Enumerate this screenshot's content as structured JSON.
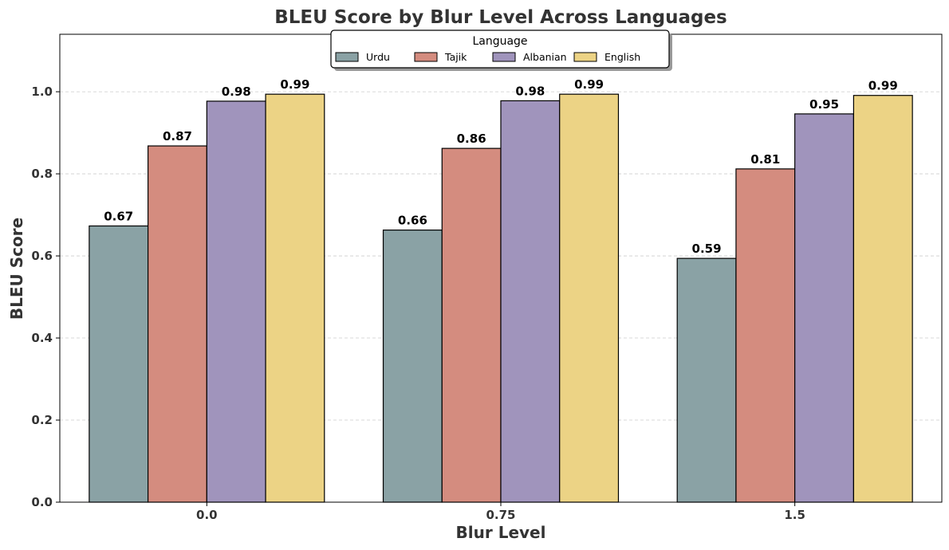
{
  "chart_data": {
    "type": "bar",
    "title": "BLEU Score by Blur Level Across Languages",
    "xlabel": "Blur Level",
    "ylabel": "BLEU Score",
    "categories": [
      "0.0",
      "0.75",
      "1.5"
    ],
    "ylim": [
      0,
      1.14
    ],
    "yticks": [
      0.0,
      0.2,
      0.4,
      0.6,
      0.8,
      1.0
    ],
    "ytick_labels": [
      "0.0",
      "0.2",
      "0.4",
      "0.6",
      "0.8",
      "1.0"
    ],
    "grid": "y-dashed",
    "legend": {
      "title": "Language",
      "placement": "top-center"
    },
    "series": [
      {
        "name": "Urdu",
        "color": "#8aa2a5",
        "values": [
          0.673,
          0.663,
          0.594
        ],
        "labels": [
          "0.67",
          "0.66",
          "0.59"
        ]
      },
      {
        "name": "Tajik",
        "color": "#d48c7f",
        "values": [
          0.868,
          0.862,
          0.812
        ],
        "labels": [
          "0.87",
          "0.86",
          "0.81"
        ]
      },
      {
        "name": "Albanian",
        "color": "#a094bc",
        "values": [
          0.977,
          0.978,
          0.946
        ],
        "labels": [
          "0.98",
          "0.98",
          "0.95"
        ]
      },
      {
        "name": "English",
        "color": "#ecd385",
        "values": [
          0.994,
          0.994,
          0.991
        ],
        "labels": [
          "0.99",
          "0.99",
          "0.99"
        ]
      }
    ]
  }
}
